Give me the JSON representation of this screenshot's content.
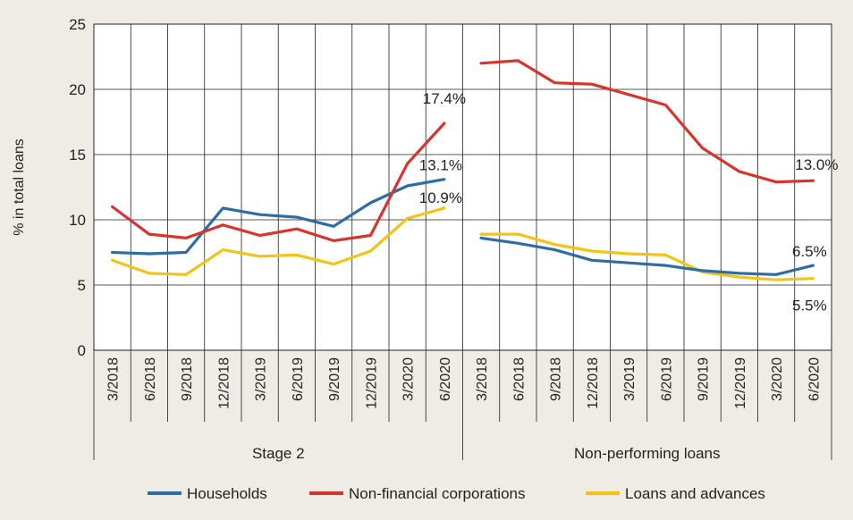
{
  "chart_data": {
    "type": "line",
    "ylabel": "% in total loans",
    "ylim": [
      0,
      25
    ],
    "yticks": [
      0,
      5,
      10,
      15,
      20,
      25
    ],
    "grid": true,
    "legend_position": "bottom",
    "colors": {
      "Households": "#2e6da4",
      "Non-financial corporations": "#d9342b",
      "Loans and advances": "#f3c316"
    },
    "panels": [
      {
        "name": "Stage 2",
        "categories": [
          "3/2018",
          "6/2018",
          "9/2018",
          "12/2018",
          "3/2019",
          "6/2019",
          "9/2019",
          "12/2019",
          "3/2020",
          "6/2020"
        ],
        "series": [
          {
            "name": "Households",
            "values": [
              7.5,
              7.4,
              7.5,
              10.9,
              10.4,
              10.2,
              9.5,
              11.3,
              12.6,
              13.1
            ]
          },
          {
            "name": "Non-financial corporations",
            "values": [
              11.0,
              8.9,
              8.6,
              9.6,
              8.8,
              9.3,
              8.4,
              8.8,
              14.3,
              17.4
            ]
          },
          {
            "name": "Loans and advances",
            "values": [
              6.9,
              5.9,
              5.8,
              7.7,
              7.2,
              7.3,
              6.6,
              7.6,
              10.1,
              10.9
            ]
          }
        ],
        "annotations": [
          {
            "series": "Non-financial corporations",
            "text": "17.4%"
          },
          {
            "series": "Households",
            "text": "13.1%"
          },
          {
            "series": "Loans and advances",
            "text": "10.9%"
          }
        ]
      },
      {
        "name": "Non-performing loans",
        "categories": [
          "3/2018",
          "6/2018",
          "9/2018",
          "12/2018",
          "3/2019",
          "6/2019",
          "9/2019",
          "12/2019",
          "3/2020",
          "6/2020"
        ],
        "series": [
          {
            "name": "Households",
            "values": [
              8.6,
              8.2,
              7.7,
              6.9,
              6.7,
              6.5,
              6.1,
              5.9,
              5.8,
              6.5
            ]
          },
          {
            "name": "Non-financial corporations",
            "values": [
              22.0,
              22.2,
              20.5,
              20.4,
              19.6,
              18.8,
              15.5,
              13.7,
              12.9,
              13.0
            ]
          },
          {
            "name": "Loans and advances",
            "values": [
              8.9,
              8.9,
              8.1,
              7.6,
              7.4,
              7.3,
              6.0,
              5.6,
              5.4,
              5.5
            ]
          }
        ],
        "annotations": [
          {
            "series": "Non-financial corporations",
            "text": "13.0%"
          },
          {
            "series": "Households",
            "text": "6.5%"
          },
          {
            "series": "Loans and advances",
            "text": "5.5%"
          }
        ]
      }
    ],
    "legend": [
      "Households",
      "Non-financial corporations",
      "Loans and advances"
    ]
  }
}
